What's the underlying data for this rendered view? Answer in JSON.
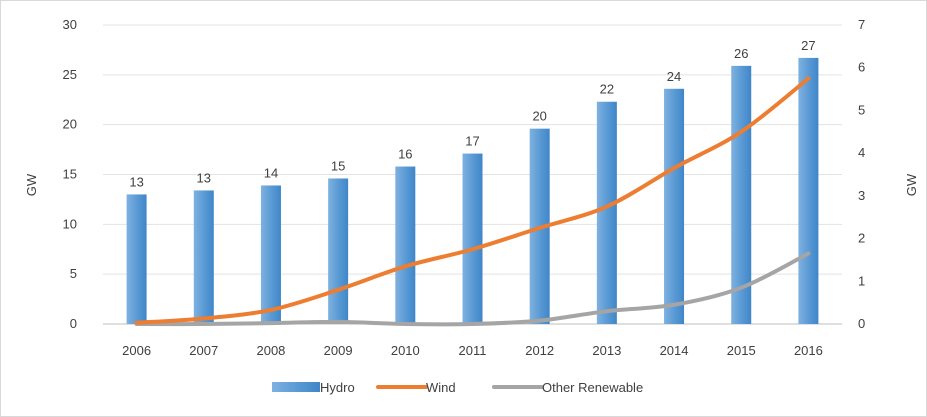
{
  "chart_data": {
    "type": "bar",
    "categories": [
      "2006",
      "2007",
      "2008",
      "2009",
      "2010",
      "2011",
      "2012",
      "2013",
      "2014",
      "2015",
      "2016"
    ],
    "series": [
      {
        "name": "Hydro",
        "type": "bar",
        "axis": "left",
        "color": "#5B9BD5",
        "values": [
          13,
          13.4,
          13.9,
          14.6,
          15.8,
          17.1,
          19.6,
          22.3,
          23.6,
          25.9,
          26.7
        ],
        "labels": [
          "13",
          "13",
          "14",
          "15",
          "16",
          "17",
          "20",
          "22",
          "24",
          "26",
          "27"
        ]
      },
      {
        "name": "Wind",
        "type": "line",
        "axis": "right",
        "color": "#ED7D31",
        "values": [
          0.03,
          0.13,
          0.33,
          0.8,
          1.35,
          1.75,
          2.25,
          2.75,
          3.65,
          4.5,
          5.75
        ]
      },
      {
        "name": "Other Renewable",
        "type": "line",
        "axis": "right",
        "color": "#A5A5A5",
        "values": [
          0.0,
          0.0,
          0.02,
          0.05,
          0.0,
          0.0,
          0.08,
          0.3,
          0.45,
          0.85,
          1.65
        ]
      }
    ],
    "y_left": {
      "label": "GW",
      "min": 0,
      "max": 30,
      "step": 5,
      "ticks": [
        "0",
        "5",
        "10",
        "15",
        "20",
        "25",
        "30"
      ]
    },
    "y_right": {
      "label": "GW",
      "min": 0,
      "max": 7,
      "step": 1,
      "ticks": [
        "0",
        "1",
        "2",
        "3",
        "4",
        "5",
        "6",
        "7"
      ]
    },
    "grid": true,
    "legend_position": "bottom"
  }
}
